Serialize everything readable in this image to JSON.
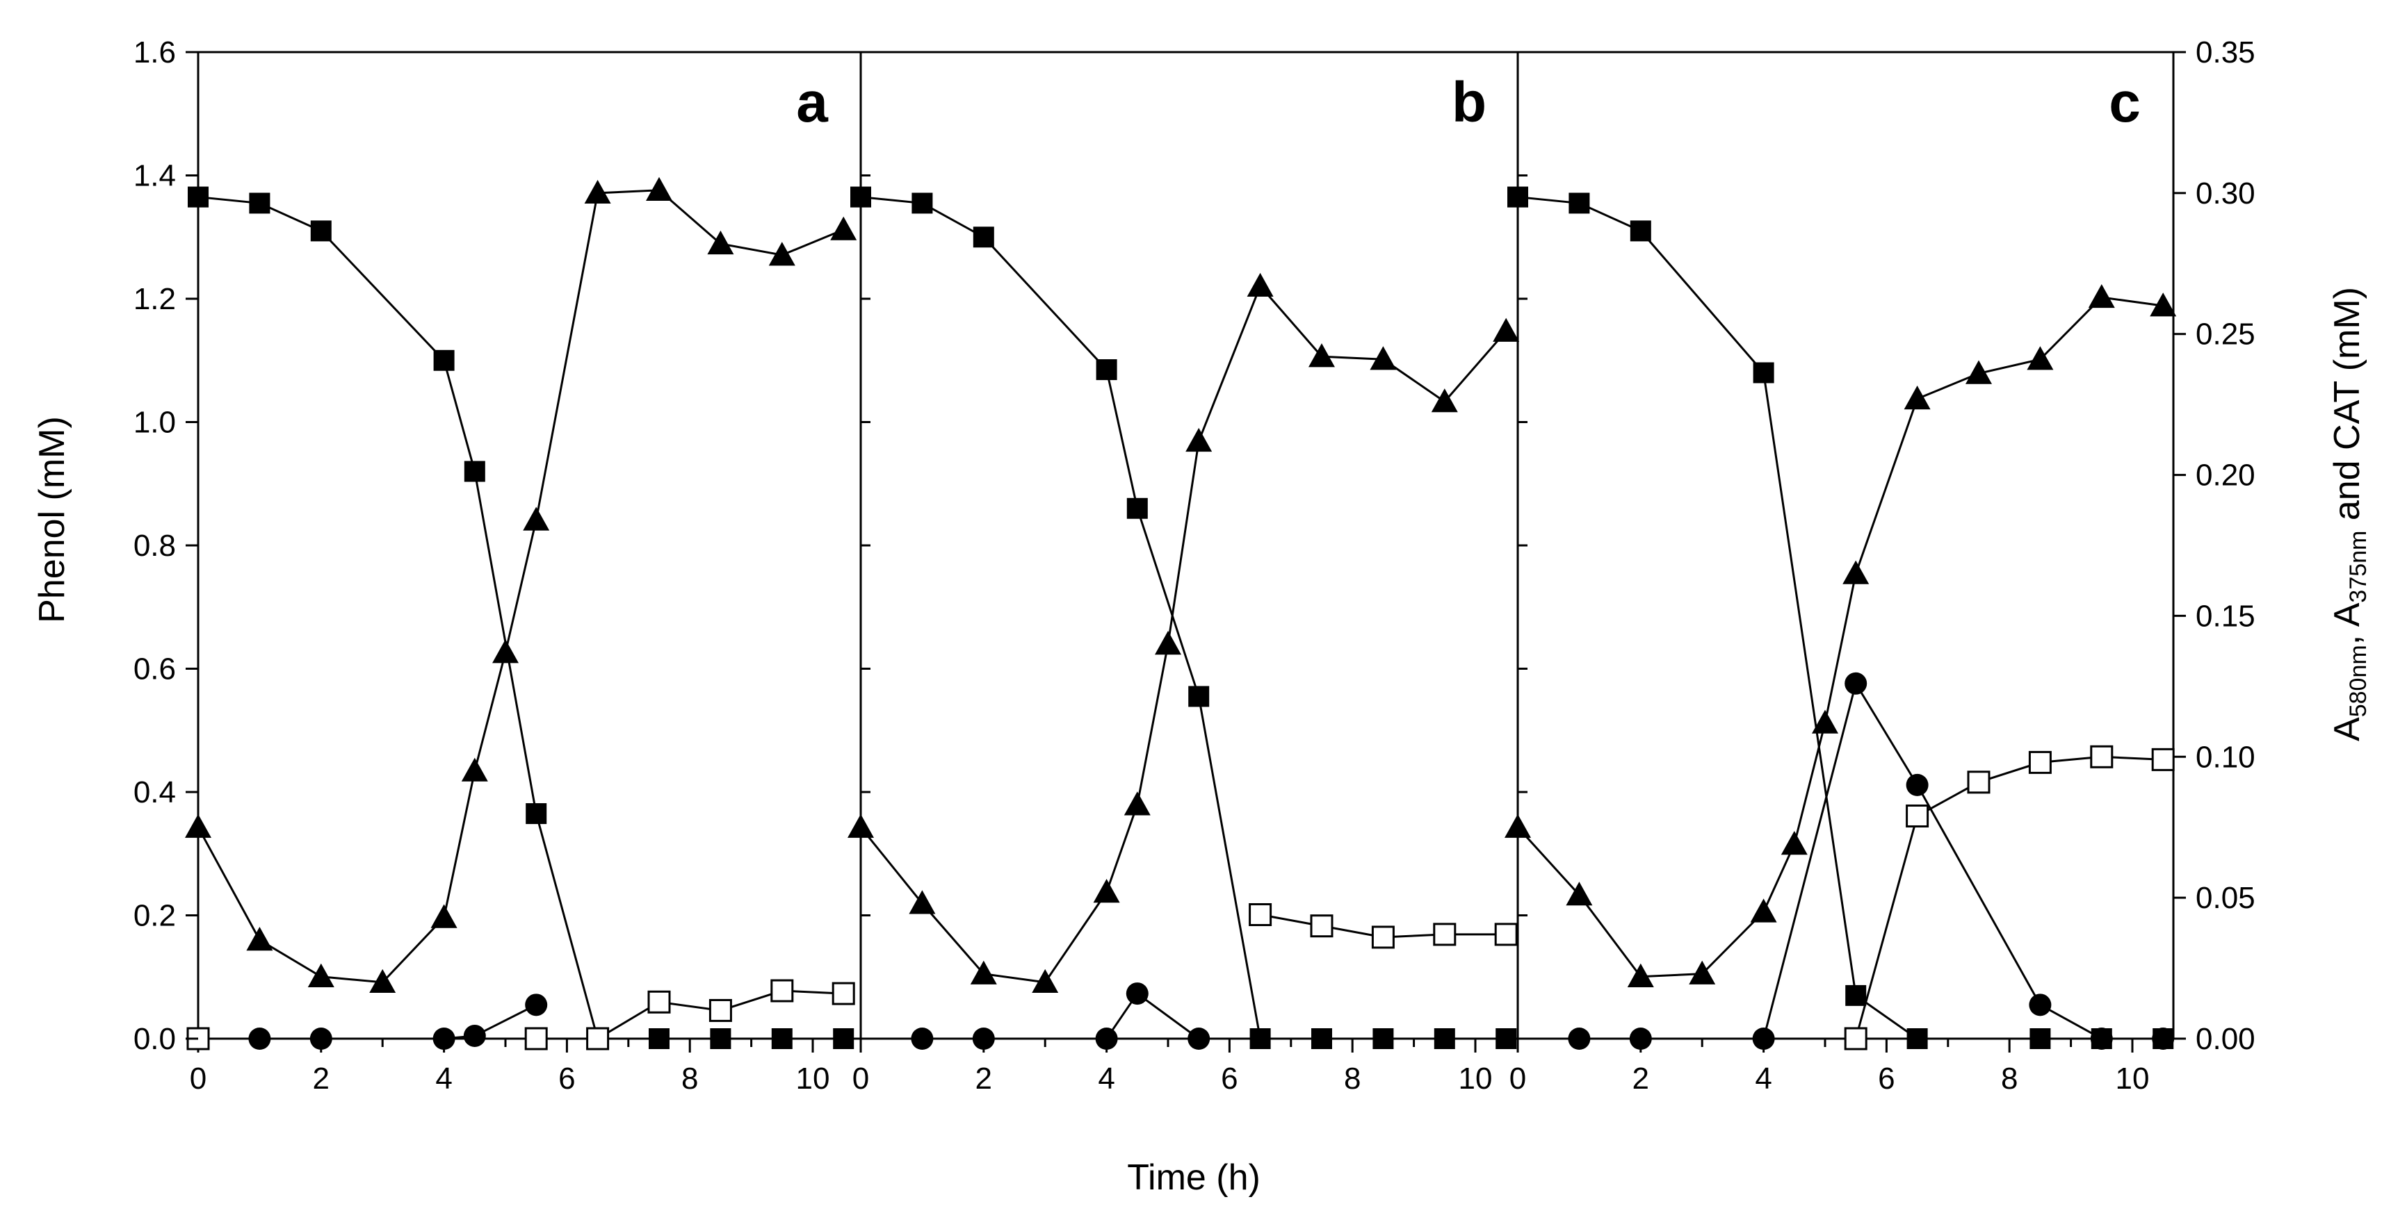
{
  "chart_data": {
    "type": "line",
    "xlabel": "Time (h)",
    "ylabel_left": "Phenol (mM)",
    "ylabel_right": {
      "text_before_sub1": "A",
      "sub1": "580nm",
      "text_between": ", A",
      "sub2": "375nm",
      "text_after": " and CAT (mM)"
    },
    "xlim": [
      0,
      10.9
    ],
    "ylim_left": [
      0,
      1.6
    ],
    "ylim_right": [
      0,
      0.35
    ],
    "x_ticks": [
      "0",
      "2",
      "4",
      "6",
      "8",
      "10"
    ],
    "y_ticks_left": [
      "0.0",
      "0.2",
      "0.4",
      "0.6",
      "0.8",
      "1.0",
      "1.2",
      "1.4",
      "1.6"
    ],
    "y_ticks_right": [
      "0.00",
      "0.05",
      "0.10",
      "0.15",
      "0.20",
      "0.25",
      "0.30",
      "0.35"
    ],
    "markers": {
      "phenol": "filled-square",
      "a580": "filled-triangle",
      "a375": "filled-circle",
      "cat": "open-square"
    },
    "panels": [
      {
        "label": "a",
        "series": [
          {
            "name": "Phenol",
            "marker": "filled-square",
            "axis": "left",
            "x": [
              0,
              1,
              2,
              4,
              4.5,
              5.5,
              6.5,
              7.5,
              8.5,
              9.5,
              10.5
            ],
            "y": [
              1.365,
              1.355,
              1.31,
              1.1,
              0.92,
              0.365,
              0.0,
              0.0,
              0.0,
              0.0,
              0.0
            ]
          },
          {
            "name": "A580nm",
            "marker": "filled-triangle",
            "axis": "right",
            "x": [
              0,
              1,
              2,
              3,
              4,
              4.5,
              5,
              5.5,
              6.5,
              7.5,
              8.5,
              9.5,
              10.5
            ],
            "y": [
              0.075,
              0.035,
              0.022,
              0.02,
              0.043,
              0.095,
              0.137,
              0.184,
              0.3,
              0.301,
              0.282,
              0.278,
              0.287
            ]
          },
          {
            "name": "A375nm",
            "marker": "filled-circle",
            "axis": "right",
            "x": [
              1,
              2,
              4,
              4.5,
              5.5
            ],
            "y": [
              0.0,
              0.0,
              0.0,
              0.001,
              0.012
            ]
          },
          {
            "name": "CAT",
            "marker": "open-square",
            "axis": "right",
            "x": [
              0,
              5.5,
              6.5,
              7.5,
              8.5,
              9.5,
              10.5
            ],
            "y": [
              0.0,
              0.0,
              0.0,
              0.013,
              0.01,
              0.017,
              0.016
            ]
          }
        ]
      },
      {
        "label": "b",
        "series": [
          {
            "name": "Phenol",
            "marker": "filled-square",
            "axis": "left",
            "x": [
              0,
              1,
              2,
              4,
              4.5,
              5.5,
              6.5,
              7.5,
              8.5,
              9.5,
              10.5
            ],
            "y": [
              1.365,
              1.355,
              1.3,
              1.085,
              0.86,
              0.555,
              0.0,
              0.0,
              0.0,
              0.0,
              0.0
            ]
          },
          {
            "name": "A580nm",
            "marker": "filled-triangle",
            "axis": "right",
            "x": [
              0,
              1,
              2,
              3,
              4,
              4.5,
              5,
              5.5,
              6.5,
              7.5,
              8.5,
              9.5,
              10.5
            ],
            "y": [
              0.075,
              0.048,
              0.023,
              0.02,
              0.052,
              0.083,
              0.14,
              0.212,
              0.267,
              0.242,
              0.241,
              0.226,
              0.251
            ]
          },
          {
            "name": "A375nm",
            "marker": "filled-circle",
            "axis": "right",
            "x": [
              1,
              2,
              4,
              4.5,
              5.5
            ],
            "y": [
              0.0,
              0.0,
              0.0,
              0.016,
              0.0
            ]
          },
          {
            "name": "CAT",
            "marker": "open-square",
            "axis": "right",
            "x": [
              6.5,
              7.5,
              8.5,
              9.5,
              10.5
            ],
            "y": [
              0.044,
              0.04,
              0.036,
              0.037,
              0.037
            ]
          }
        ]
      },
      {
        "label": "c",
        "series": [
          {
            "name": "Phenol",
            "marker": "filled-square",
            "axis": "left",
            "x": [
              0,
              1,
              2,
              4,
              5.5,
              6.5,
              8.5,
              9.5,
              10.5
            ],
            "y": [
              1.365,
              1.355,
              1.31,
              1.08,
              0.07,
              0.0,
              0.0,
              0.0,
              0.0
            ]
          },
          {
            "name": "A580nm",
            "marker": "filled-triangle",
            "axis": "right",
            "x": [
              0,
              1,
              2,
              3,
              4,
              4.5,
              5,
              5.5,
              6.5,
              7.5,
              8.5,
              9.5,
              10.5
            ],
            "y": [
              0.075,
              0.051,
              0.022,
              0.023,
              0.045,
              0.069,
              0.112,
              0.165,
              0.227,
              0.236,
              0.241,
              0.263,
              0.26
            ]
          },
          {
            "name": "A375nm",
            "marker": "filled-circle",
            "axis": "right",
            "x": [
              1,
              2,
              4,
              5.5,
              6.5,
              8.5,
              9.5,
              10.5
            ],
            "y": [
              0.0,
              0.0,
              0.0,
              0.126,
              0.09,
              0.012,
              0.0,
              0.0
            ]
          },
          {
            "name": "CAT",
            "marker": "open-square",
            "axis": "right",
            "x": [
              5.5,
              6.5,
              7.5,
              8.5,
              9.5,
              10.5
            ],
            "y": [
              0.0,
              0.079,
              0.091,
              0.098,
              0.1,
              0.099
            ]
          }
        ]
      }
    ]
  }
}
